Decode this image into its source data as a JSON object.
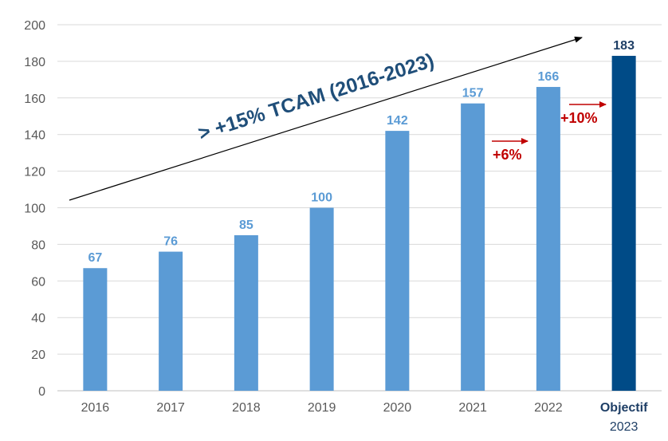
{
  "chart_data": {
    "type": "bar",
    "categories": [
      "2016",
      "2017",
      "2018",
      "2019",
      "2020",
      "2021",
      "2022",
      "2023"
    ],
    "values": [
      67,
      76,
      85,
      100,
      142,
      157,
      166,
      183
    ],
    "highlight": {
      "index": 7,
      "label_top": "Objectif",
      "label_bottom": "2023"
    },
    "ylim": [
      0,
      200
    ],
    "yticks": [
      0,
      20,
      40,
      60,
      80,
      100,
      120,
      140,
      160,
      180,
      200
    ],
    "grid": true,
    "title": "",
    "xlabel": "",
    "ylabel": "",
    "colors": {
      "bar": "#5b9bd5",
      "bar_highlight": "#004b87",
      "value_label": "#5b9bd5",
      "value_label_highlight": "#1f3f66",
      "growth": "#c00000",
      "trend_text": "#1f4e79",
      "grid": "#d9d9d9",
      "axis_text": "#595959"
    },
    "annotations": {
      "trend": "> +15% TCAM (2016-2023)",
      "growth": [
        {
          "text": "+6%",
          "from": "2021",
          "to": "2022"
        },
        {
          "text": "+10%",
          "from": "2022",
          "to": "2023"
        }
      ]
    }
  }
}
